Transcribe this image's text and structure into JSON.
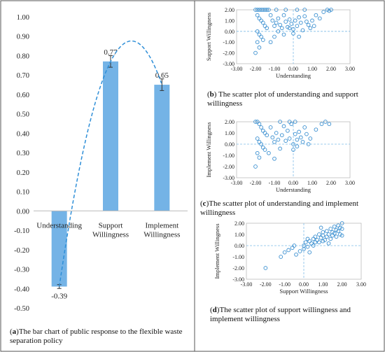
{
  "captions": {
    "a": {
      "letter": "a",
      "open": "(",
      "close": ")",
      "text": "The bar chart of public response to the flexible waste separation policy"
    },
    "b": {
      "letter": "b",
      "open": "(",
      "close": ")",
      "text": " The scatter plot of understanding and support willingness"
    },
    "c": {
      "letter": "c",
      "open": "(",
      "close": ")",
      "text": "The scatter plot of understanding and implement willingness"
    },
    "d": {
      "letter": "d",
      "open": "(",
      "close": ")",
      "text": "The scatter plot of support willingness and implement willingness"
    }
  },
  "colors": {
    "bar": "#74b3e6",
    "point": "#3a8fd0",
    "trend": "#2f8fd8",
    "refline": "#7fbde8",
    "border": "#555555",
    "text": "#222222"
  },
  "chart_data": [
    {
      "type": "bar",
      "categories": [
        "Understanding",
        "Support Willingness",
        "Implement Willingness"
      ],
      "category_lines": [
        [
          "Understanding"
        ],
        [
          "Support",
          "Willingness"
        ],
        [
          "Implement",
          "Willingness"
        ]
      ],
      "values": [
        -0.39,
        0.77,
        0.65
      ],
      "errors": [
        0.01,
        0.03,
        0.03
      ],
      "data_labels": [
        "-0.39",
        "0.77",
        "0.65"
      ],
      "ylim": [
        -0.5,
        1.0
      ],
      "yticks": [
        "1.00",
        "0.90",
        "0.80",
        "0.70",
        "0.60",
        "0.50",
        "0.40",
        "0.30",
        "0.20",
        "0.10",
        "0.00",
        "-0.10",
        "-0.20",
        "-0.30",
        "-0.40",
        "-0.50"
      ],
      "trendline": "dashed polynomial",
      "title": "",
      "xlabel": "",
      "ylabel": ""
    },
    {
      "type": "scatter",
      "xlabel": "Understanding",
      "ylabel": "Support Willingness",
      "xlim": [
        -3,
        3
      ],
      "ylim": [
        -3,
        2
      ],
      "xticks": [
        "-3.00",
        "-2.00",
        "-1.00",
        "0.00",
        "1.00",
        "2.00",
        "3.00"
      ],
      "yticks": [
        "2.00",
        "1.00",
        "0.00",
        "-1.00",
        "-2.00",
        "-3.00"
      ],
      "points": [
        [
          -2.0,
          2.0
        ],
        [
          -1.9,
          2.0
        ],
        [
          -1.8,
          2.0
        ],
        [
          -1.7,
          2.0
        ],
        [
          -1.6,
          2.0
        ],
        [
          -1.5,
          2.0
        ],
        [
          -1.4,
          2.0
        ],
        [
          -1.3,
          2.0
        ],
        [
          -1.9,
          1.5
        ],
        [
          -1.8,
          1.2
        ],
        [
          -1.7,
          1.0
        ],
        [
          -1.6,
          0.8
        ],
        [
          -1.5,
          0.5
        ],
        [
          -1.4,
          0.3
        ],
        [
          -1.9,
          0.0
        ],
        [
          -1.8,
          -0.3
        ],
        [
          -1.7,
          -0.5
        ],
        [
          -1.6,
          -0.8
        ],
        [
          -1.9,
          -1.0
        ],
        [
          -2.0,
          -2.0
        ],
        [
          -1.8,
          -1.5
        ],
        [
          -1.2,
          1.5
        ],
        [
          -1.1,
          1.0
        ],
        [
          -1.0,
          0.5
        ],
        [
          -0.9,
          0.8
        ],
        [
          -0.8,
          1.2
        ],
        [
          -0.7,
          0.6
        ],
        [
          -0.6,
          0.3
        ],
        [
          -0.5,
          1.5
        ],
        [
          -0.4,
          0.9
        ],
        [
          -0.3,
          0.4
        ],
        [
          -0.2,
          1.1
        ],
        [
          -0.1,
          0.7
        ],
        [
          0.0,
          0.2
        ],
        [
          0.1,
          1.0
        ],
        [
          0.2,
          0.5
        ],
        [
          0.3,
          1.3
        ],
        [
          0.4,
          0.8
        ],
        [
          0.5,
          0.1
        ],
        [
          0.6,
          1.4
        ],
        [
          0.7,
          0.9
        ],
        [
          0.8,
          0.6
        ],
        [
          1.0,
          1.0
        ],
        [
          1.2,
          1.5
        ],
        [
          1.4,
          1.2
        ],
        [
          1.6,
          1.8
        ],
        [
          1.8,
          2.0
        ],
        [
          2.0,
          2.0
        ],
        [
          1.9,
          1.9
        ],
        [
          -0.9,
          2.0
        ],
        [
          -0.4,
          2.0
        ],
        [
          0.2,
          2.0
        ],
        [
          0.6,
          2.0
        ],
        [
          -1.0,
          -0.5
        ],
        [
          -0.5,
          -0.3
        ],
        [
          0.0,
          -0.2
        ],
        [
          0.3,
          -0.5
        ],
        [
          -1.2,
          -1.0
        ],
        [
          -0.8,
          0.0
        ],
        [
          -0.2,
          0.3
        ],
        [
          0.9,
          0.3
        ],
        [
          1.1,
          0.5
        ]
      ]
    },
    {
      "type": "scatter",
      "xlabel": "Understanding",
      "ylabel": "Implement Willingness",
      "xlim": [
        -3,
        3
      ],
      "ylim": [
        -3,
        2
      ],
      "xticks": [
        "-3.00",
        "-2.00",
        "-1.00",
        "0.00",
        "1.00",
        "2.00",
        "3.00"
      ],
      "yticks": [
        "2.00",
        "1.00",
        "0.00",
        "-1.00",
        "-2.00",
        "-3.00"
      ],
      "points": [
        [
          -2.0,
          2.0
        ],
        [
          -1.9,
          2.0
        ],
        [
          -1.8,
          1.8
        ],
        [
          -1.7,
          1.5
        ],
        [
          -1.6,
          1.2
        ],
        [
          -1.5,
          1.0
        ],
        [
          -1.4,
          0.8
        ],
        [
          -1.9,
          0.5
        ],
        [
          -1.8,
          0.2
        ],
        [
          -1.7,
          0.0
        ],
        [
          -1.6,
          -0.3
        ],
        [
          -1.9,
          -0.8
        ],
        [
          -1.8,
          -1.2
        ],
        [
          -2.0,
          -2.0
        ],
        [
          -1.5,
          -0.5
        ],
        [
          -1.2,
          1.5
        ],
        [
          -1.1,
          0.6
        ],
        [
          -1.0,
          0.2
        ],
        [
          -0.9,
          1.0
        ],
        [
          -0.8,
          0.4
        ],
        [
          -0.6,
          0.8
        ],
        [
          -0.5,
          1.6
        ],
        [
          -0.4,
          0.3
        ],
        [
          -0.3,
          1.2
        ],
        [
          -0.2,
          0.5
        ],
        [
          -0.1,
          1.8
        ],
        [
          0.0,
          0.0
        ],
        [
          0.1,
          0.9
        ],
        [
          0.2,
          0.4
        ],
        [
          0.3,
          1.1
        ],
        [
          0.4,
          0.6
        ],
        [
          0.5,
          0.2
        ],
        [
          0.7,
          0.9
        ],
        [
          0.9,
          0.5
        ],
        [
          1.2,
          1.3
        ],
        [
          1.5,
          1.8
        ],
        [
          1.7,
          2.0
        ],
        [
          1.9,
          1.8
        ],
        [
          -0.7,
          2.0
        ],
        [
          -0.2,
          2.0
        ],
        [
          0.1,
          2.0
        ],
        [
          -1.3,
          -0.8
        ],
        [
          -0.7,
          -0.4
        ],
        [
          0.0,
          -0.5
        ],
        [
          0.2,
          -0.2
        ],
        [
          -1.0,
          -1.3
        ],
        [
          0.6,
          1.5
        ],
        [
          0.8,
          0.0
        ]
      ]
    },
    {
      "type": "scatter",
      "xlabel": "Support Willingness",
      "ylabel": "Implement Willingness",
      "xlim": [
        -3,
        3
      ],
      "ylim": [
        -3,
        2
      ],
      "xticks": [
        "-3.00",
        "-2.00",
        "-1.00",
        "0.00",
        "1.00",
        "2.00",
        "3.00"
      ],
      "yticks": [
        "2.00",
        "1.00",
        "0.00",
        "-1.00",
        "-2.00",
        "-3.00"
      ],
      "points": [
        [
          -2.0,
          -2.0
        ],
        [
          -1.2,
          -1.0
        ],
        [
          -1.0,
          -0.6
        ],
        [
          -0.8,
          -0.4
        ],
        [
          -0.6,
          -0.2
        ],
        [
          -0.4,
          -0.8
        ],
        [
          -0.2,
          -0.5
        ],
        [
          0.0,
          -0.3
        ],
        [
          0.0,
          0.0
        ],
        [
          0.1,
          0.3
        ],
        [
          0.2,
          -0.1
        ],
        [
          0.3,
          0.4
        ],
        [
          0.4,
          0.2
        ],
        [
          0.5,
          0.6
        ],
        [
          0.5,
          0.0
        ],
        [
          0.6,
          0.8
        ],
        [
          0.7,
          0.5
        ],
        [
          0.8,
          1.0
        ],
        [
          0.8,
          0.3
        ],
        [
          0.9,
          0.7
        ],
        [
          1.0,
          1.2
        ],
        [
          1.0,
          0.9
        ],
        [
          1.1,
          0.5
        ],
        [
          1.2,
          1.3
        ],
        [
          1.2,
          0.8
        ],
        [
          1.3,
          1.0
        ],
        [
          1.4,
          1.5
        ],
        [
          1.4,
          0.6
        ],
        [
          1.5,
          1.2
        ],
        [
          1.5,
          0.9
        ],
        [
          1.6,
          1.7
        ],
        [
          1.6,
          1.1
        ],
        [
          1.7,
          1.4
        ],
        [
          1.7,
          0.8
        ],
        [
          1.8,
          1.8
        ],
        [
          1.8,
          1.3
        ],
        [
          1.9,
          1.6
        ],
        [
          1.9,
          1.0
        ],
        [
          2.0,
          2.0
        ],
        [
          2.0,
          1.5
        ],
        [
          2.0,
          0.9
        ],
        [
          0.2,
          0.6
        ],
        [
          0.6,
          0.3
        ],
        [
          1.0,
          0.4
        ],
        [
          -0.5,
          0.0
        ],
        [
          0.3,
          -0.6
        ],
        [
          1.3,
          0.2
        ],
        [
          0.9,
          1.6
        ]
      ]
    }
  ]
}
